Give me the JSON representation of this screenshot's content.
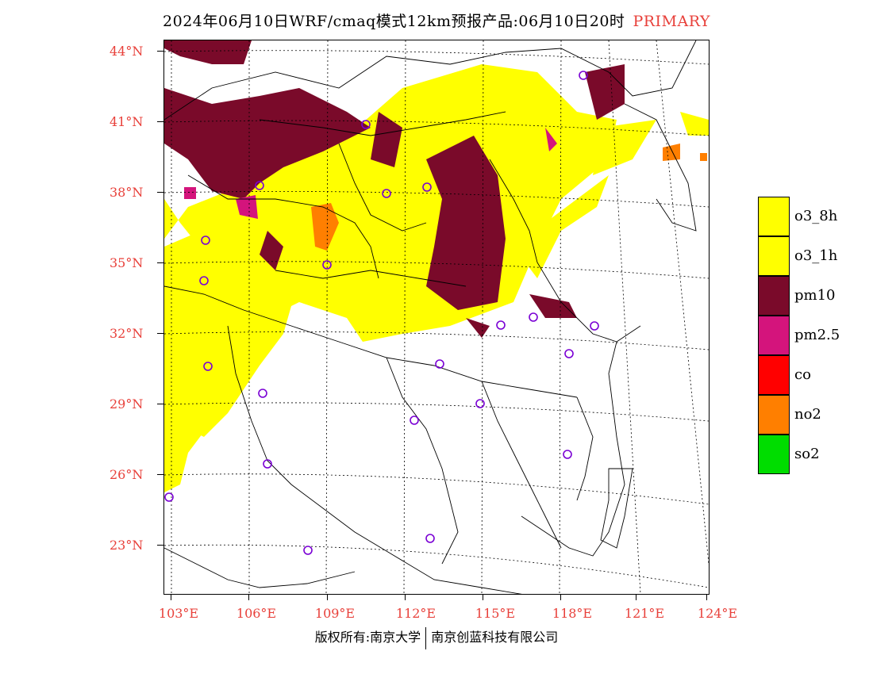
{
  "title": {
    "text": "2024年06月10日WRF/cmaq模式12km预报产品:06月10日20时",
    "tag": "PRIMARY"
  },
  "lat_labels": [
    "44°N",
    "41°N",
    "38°N",
    "35°N",
    "32°N",
    "29°N",
    "26°N",
    "23°N"
  ],
  "lon_labels": [
    "103°E",
    "106°E",
    "109°E",
    "112°E",
    "115°E",
    "118°E",
    "121°E",
    "124°E"
  ],
  "legend": [
    {
      "label": "o3_8h",
      "color": "#ffff00"
    },
    {
      "label": "o3_1h",
      "color": "#ffff00"
    },
    {
      "label": "pm10",
      "color": "#7a0a2a"
    },
    {
      "label": "pm2.5",
      "color": "#d4147c"
    },
    {
      "label": "co",
      "color": "#ff0000"
    },
    {
      "label": "no2",
      "color": "#ff7f00"
    },
    {
      "label": "so2",
      "color": "#00dd00"
    }
  ],
  "footer": {
    "left": "版权所有:南京大学",
    "right": "南京创蓝科技有限公司"
  }
}
